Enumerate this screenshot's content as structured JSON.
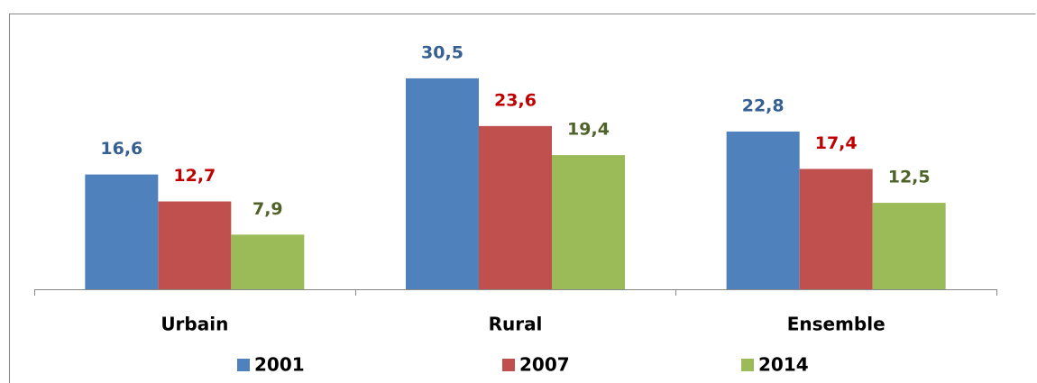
{
  "chart_data": {
    "type": "bar",
    "categories": [
      "Urbain",
      "Rural",
      "Ensemble"
    ],
    "series": [
      {
        "name": "2001",
        "color": "#4f81bd",
        "label_color": "#376092",
        "values": [
          16.6,
          30.5,
          22.8
        ],
        "value_labels": [
          "16,6",
          "30,5",
          "22,8"
        ]
      },
      {
        "name": "2007",
        "color": "#c0504d",
        "label_color": "#c00000",
        "values": [
          12.7,
          23.6,
          17.4
        ],
        "value_labels": [
          "12,7",
          "23,6",
          "17,4"
        ]
      },
      {
        "name": "2014",
        "color": "#9bbb59",
        "label_color": "#4f6228",
        "values": [
          7.9,
          19.4,
          12.5
        ],
        "value_labels": [
          "7,9",
          "19,4",
          "12,5"
        ]
      }
    ],
    "ylim": [
      0,
      40
    ]
  }
}
